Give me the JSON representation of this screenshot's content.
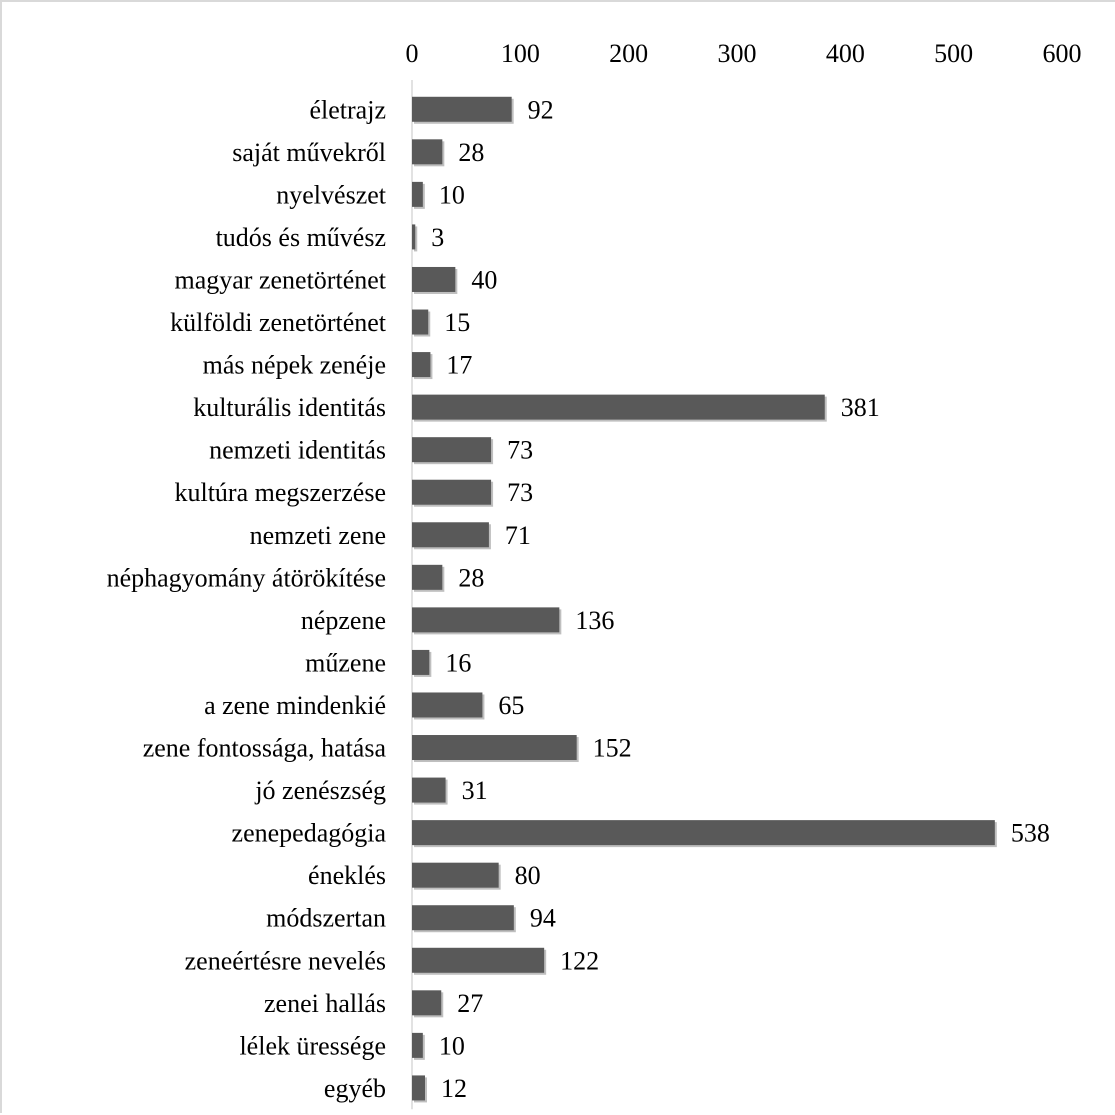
{
  "chart_data": {
    "type": "bar",
    "orientation": "horizontal",
    "title": "",
    "xlabel": "",
    "ylabel": "",
    "xlim": [
      0,
      600
    ],
    "x_ticks": [
      0,
      100,
      200,
      300,
      400,
      500,
      600
    ],
    "x_axis_position": "top",
    "grid": false,
    "legend": "none",
    "bar_color": "#595959",
    "categories": [
      "életrajz",
      "saját művekről",
      "nyelvészet",
      "tudós és művész",
      "magyar zenetörténet",
      "külföldi zenetörténet",
      "más népek zenéje",
      "kulturális identitás",
      "nemzeti identitás",
      "kultúra megszerzése",
      "nemzeti zene",
      "néphagyomány átörökítése",
      "népzene",
      "műzene",
      "a zene mindenkié",
      "zene fontossága, hatása",
      "jó zenészség",
      "zenepedagógia",
      "éneklés",
      "módszertan",
      "zeneértésre nevelés",
      "zenei hallás",
      "lélek üressége",
      "egyéb"
    ],
    "values": [
      92,
      28,
      10,
      3,
      40,
      15,
      17,
      381,
      73,
      73,
      71,
      28,
      136,
      16,
      65,
      152,
      31,
      538,
      80,
      94,
      122,
      27,
      10,
      12
    ]
  }
}
